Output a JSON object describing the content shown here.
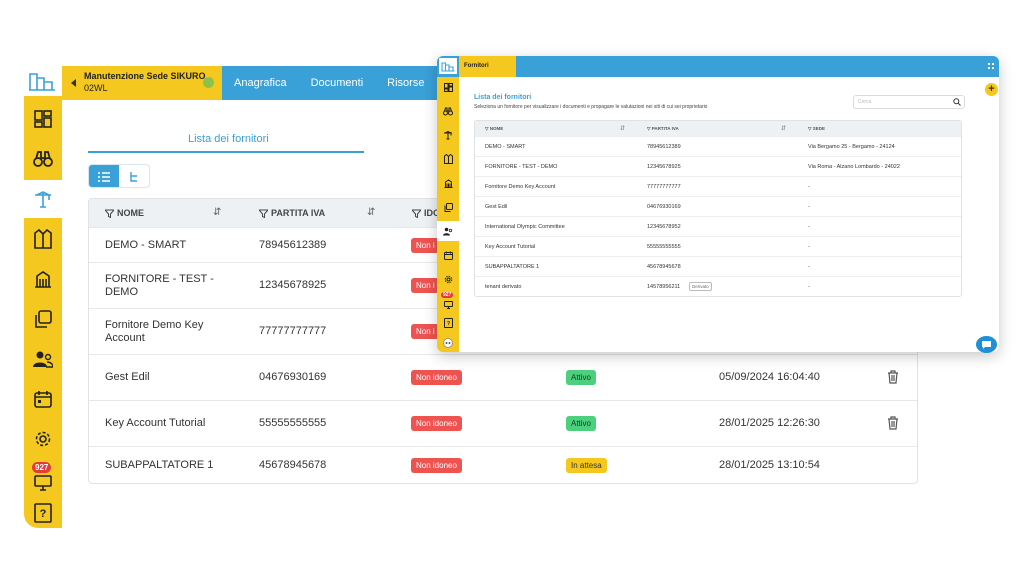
{
  "back": {
    "site": {
      "name": "Manutenzione Sede SIKURO",
      "code": "02WL"
    },
    "tabs": [
      "Anagrafica",
      "Documenti",
      "Risorse"
    ],
    "subtitle": "Lista dei fornitori",
    "sidebar_badge": "927",
    "columns": {
      "nome": "NOME",
      "partita_iva": "PARTITA IVA",
      "idoneita": "IDO"
    },
    "rows": [
      {
        "name": "DEMO - SMART",
        "piva": "78945612389",
        "status": "Non i",
        "state": "",
        "date": ""
      },
      {
        "name": "FORNITORE - TEST - DEMO",
        "piva": "12345678925",
        "status": "Non i",
        "state": "",
        "date": ""
      },
      {
        "name": "Fornitore Demo Key Account",
        "piva": "77777777777",
        "status": "Non i",
        "state": "",
        "date": ""
      },
      {
        "name": "Gest Edil",
        "piva": "04676930169",
        "status": "Non idoneo",
        "state": "Attivo",
        "date": "05/09/2024 16:04:40"
      },
      {
        "name": "Key Account Tutorial",
        "piva": "55555555555",
        "status": "Non idoneo",
        "state": "Attivo",
        "date": "28/01/2025 12:26:30"
      },
      {
        "name": "SUBAPPALTATORE 1",
        "piva": "45678945678",
        "status": "Non idoneo",
        "state": "In attesa",
        "date": "28/01/2025 13:10:54"
      }
    ]
  },
  "front": {
    "title": "Fornitori",
    "heading": "Lista dei fornitori",
    "description": "Seleziona un fornitore per visualizzare i documenti e propagare le valutazioni nei siti di cui sei proprietario",
    "search_placeholder": "Cerca",
    "sidebar_badge": "927",
    "columns": {
      "nome": "NOME",
      "partita_iva": "PARTITA IVA",
      "sede": "SEDE"
    },
    "rows": [
      {
        "name": "DEMO - SMART",
        "piva": "78945612389",
        "sede": "Via Bergamo 25 - Bergamo - 24124",
        "tag": ""
      },
      {
        "name": "FORNITORE - TEST - DEMO",
        "piva": "12345678925",
        "sede": "Via Roma - Alzano Lombardo - 24022",
        "tag": ""
      },
      {
        "name": "Fornitore Demo Key Account",
        "piva": "77777777777",
        "sede": "-",
        "tag": ""
      },
      {
        "name": "Gest Edil",
        "piva": "04676930169",
        "sede": "-",
        "tag": ""
      },
      {
        "name": "International Olympic Committee",
        "piva": "12345678952",
        "sede": "-",
        "tag": ""
      },
      {
        "name": "Key Account Tutorial",
        "piva": "55555555555",
        "sede": "-",
        "tag": ""
      },
      {
        "name": "SUBAPPALTATORE 1",
        "piva": "45678945678",
        "sede": "-",
        "tag": ""
      },
      {
        "name": "tenant derivato",
        "piva": "14578956211",
        "sede": "-",
        "tag": "Derivato"
      }
    ]
  },
  "colors": {
    "accent": "#3aa0d8",
    "brand_yellow": "#f4c81e",
    "danger": "#ef5350",
    "success": "#4cd07d"
  }
}
